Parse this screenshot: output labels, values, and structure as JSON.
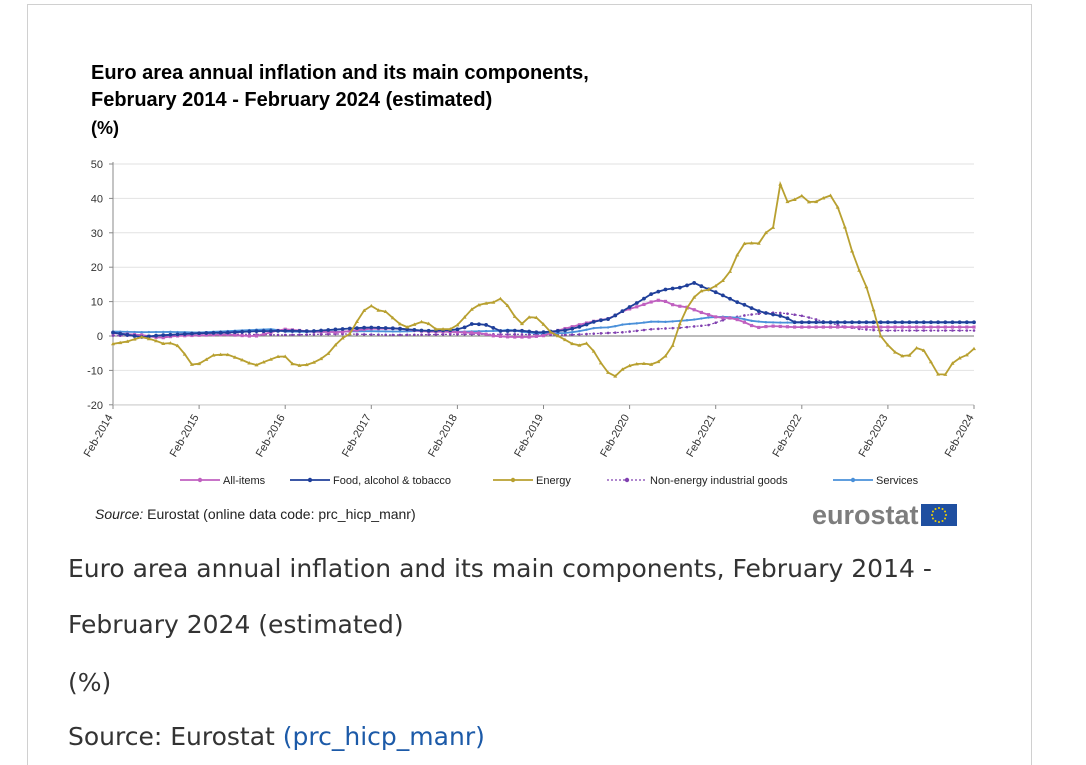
{
  "chart_data": {
    "type": "line",
    "title_line1": "Euro area annual inflation and its main components,",
    "title_line2": "February 2014 - February 2024 (estimated)",
    "unit": "(%)",
    "ylim": [
      -20,
      50
    ],
    "yticks": [
      50,
      40,
      30,
      20,
      10,
      0,
      -10,
      -20
    ],
    "xticks": [
      "Feb-2014",
      "Feb-2015",
      "Feb-2016",
      "Feb-2017",
      "Feb-2018",
      "Feb-2019",
      "Feb-2020",
      "Feb-2021",
      "Feb-2022",
      "Feb-2023",
      "Feb-2024"
    ],
    "grid": true,
    "legend_position": "bottom",
    "x_start": "2014-02",
    "months": 121,
    "series": [
      {
        "name": "All-items",
        "color": "#c060c0",
        "marker": "square",
        "anchors": [
          [
            0,
            0.8
          ],
          [
            6,
            0.3
          ],
          [
            10,
            -0.6
          ],
          [
            13,
            0.0
          ],
          [
            18,
            0.2
          ],
          [
            24,
            0.4
          ],
          [
            30,
            -0.1
          ],
          [
            36,
            2.0
          ],
          [
            42,
            1.3
          ],
          [
            48,
            1.1
          ],
          [
            54,
            2.1
          ],
          [
            60,
            2.2
          ],
          [
            66,
            1.3
          ],
          [
            72,
            1.2
          ],
          [
            78,
            0.8
          ],
          [
            80,
            0.1
          ],
          [
            84,
            -0.3
          ],
          [
            88,
            -0.3
          ],
          [
            91,
            0.1
          ],
          [
            94,
            1.6
          ],
          [
            99,
            3.4
          ],
          [
            102,
            4.4
          ],
          [
            105,
            5.1
          ],
          [
            108,
            7.4
          ],
          [
            111,
            8.6
          ],
          [
            114,
            10.0
          ],
          [
            116,
            10.6
          ],
          [
            118,
            9.2
          ],
          [
            120,
            8.6
          ],
          [
            121,
            8.5
          ],
          [
            122,
            8.1
          ],
          [
            124,
            7.0
          ],
          [
            128,
            5.3
          ],
          [
            131,
            5.2
          ],
          [
            133,
            4.3
          ],
          [
            136,
            2.4
          ],
          [
            139,
            2.9
          ],
          [
            144,
            2.6
          ]
        ]
      },
      {
        "name": "Food, alcohol & tobacco",
        "color": "#1f3f9a",
        "marker": "diamond",
        "anchors": [
          [
            0,
            1.0
          ],
          [
            6,
            -0.3
          ],
          [
            10,
            0.2
          ],
          [
            18,
            0.8
          ],
          [
            24,
            1.0
          ],
          [
            30,
            1.4
          ],
          [
            36,
            1.5
          ],
          [
            42,
            1.4
          ],
          [
            48,
            2.0
          ],
          [
            54,
            2.5
          ],
          [
            60,
            2.2
          ],
          [
            66,
            1.5
          ],
          [
            72,
            1.7
          ],
          [
            74,
            2.3
          ],
          [
            76,
            3.6
          ],
          [
            79,
            3.2
          ],
          [
            82,
            1.4
          ],
          [
            86,
            1.6
          ],
          [
            90,
            1.0
          ],
          [
            96,
            1.7
          ],
          [
            99,
            2.8
          ],
          [
            102,
            4.3
          ],
          [
            105,
            5.0
          ],
          [
            108,
            7.5
          ],
          [
            111,
            9.8
          ],
          [
            114,
            12.4
          ],
          [
            117,
            13.6
          ],
          [
            120,
            14.1
          ],
          [
            122,
            15.0
          ],
          [
            123,
            15.5
          ],
          [
            124,
            14.7
          ],
          [
            126,
            13.5
          ],
          [
            128,
            12.4
          ],
          [
            130,
            11.1
          ],
          [
            132,
            9.8
          ],
          [
            134,
            8.8
          ],
          [
            136,
            7.4
          ],
          [
            138,
            6.7
          ],
          [
            140,
            6.1
          ],
          [
            142,
            5.6
          ],
          [
            144,
            4.0
          ]
        ]
      },
      {
        "name": "Energy",
        "color": "#b8a030",
        "marker": "triangle",
        "anchors": [
          [
            0,
            -2.3
          ],
          [
            3,
            -1.6
          ],
          [
            6,
            -0.3
          ],
          [
            9,
            -1.3
          ],
          [
            10,
            -2.3
          ],
          [
            12,
            -2.0
          ],
          [
            14,
            -3.0
          ],
          [
            17,
            -8.9
          ],
          [
            19,
            -7.5
          ],
          [
            21,
            -5.6
          ],
          [
            24,
            -5.3
          ],
          [
            27,
            -6.8
          ],
          [
            30,
            -8.6
          ],
          [
            32,
            -7.5
          ],
          [
            36,
            -5.4
          ],
          [
            38,
            -8.2
          ],
          [
            40,
            -8.7
          ],
          [
            42,
            -8.0
          ],
          [
            45,
            -5.9
          ],
          [
            48,
            -1.0
          ],
          [
            50,
            0.5
          ],
          [
            52,
            5.2
          ],
          [
            54,
            9.3
          ],
          [
            56,
            7.5
          ],
          [
            58,
            7.0
          ],
          [
            60,
            4.0
          ],
          [
            62,
            2.5
          ],
          [
            64,
            3.5
          ],
          [
            66,
            4.5
          ],
          [
            68,
            2.0
          ],
          [
            72,
            2.0
          ],
          [
            74,
            5.0
          ],
          [
            76,
            8.0
          ],
          [
            78,
            9.5
          ],
          [
            80,
            9.5
          ],
          [
            82,
            10.9
          ],
          [
            84,
            8.0
          ],
          [
            86,
            3.0
          ],
          [
            88,
            5.5
          ],
          [
            90,
            5.3
          ],
          [
            92,
            1.5
          ],
          [
            96,
            -1.4
          ],
          [
            98,
            -3.0
          ],
          [
            100,
            -2.0
          ],
          [
            102,
            -5.0
          ],
          [
            104,
            -10.0
          ],
          [
            106,
            -11.9
          ],
          [
            108,
            -9.3
          ],
          [
            110,
            -8.2
          ],
          [
            112,
            -8.0
          ],
          [
            114,
            -8.3
          ],
          [
            116,
            -7.0
          ],
          [
            118,
            -4.0
          ],
          [
            120,
            4.3
          ],
          [
            122,
            10.0
          ],
          [
            124,
            13.0
          ],
          [
            126,
            13.5
          ],
          [
            128,
            15.0
          ],
          [
            130,
            17.4
          ],
          [
            132,
            23.7
          ],
          [
            134,
            28.0
          ],
          [
            135,
            27.0
          ],
          [
            136,
            25.9
          ],
          [
            138,
            30.0
          ],
          [
            140,
            32.0
          ],
          [
            141,
            44.3
          ],
          [
            142,
            41.0
          ],
          [
            143,
            37.5
          ],
          [
            145,
            41.5
          ],
          [
            147,
            39.0
          ],
          [
            148,
            38.6
          ],
          [
            150,
            40.0
          ],
          [
            152,
            41.0
          ],
          [
            154,
            35.0
          ],
          [
            156,
            25.5
          ],
          [
            158,
            18.1
          ],
          [
            160,
            12.0
          ],
          [
            162,
            0.5
          ],
          [
            164,
            -3.0
          ],
          [
            166,
            -5.6
          ],
          [
            168,
            -6.1
          ],
          [
            170,
            -3.3
          ],
          [
            172,
            -4.6
          ],
          [
            174,
            -11.1
          ],
          [
            176,
            -11.2
          ],
          [
            178,
            -6.7
          ],
          [
            180,
            -6.1
          ],
          [
            182,
            -3.7
          ]
        ]
      },
      {
        "name": "Non-energy industrial goods",
        "color": "#8040b0",
        "marker": "dot",
        "anchors": [
          [
            0,
            0.1
          ],
          [
            12,
            0.0
          ],
          [
            24,
            0.6
          ],
          [
            36,
            0.3
          ],
          [
            48,
            0.6
          ],
          [
            60,
            0.3
          ],
          [
            72,
            0.5
          ],
          [
            84,
            0.5
          ],
          [
            96,
            0.3
          ],
          [
            108,
            1.1
          ],
          [
            114,
            2.0
          ],
          [
            120,
            2.4
          ],
          [
            126,
            3.2
          ],
          [
            130,
            5.1
          ],
          [
            134,
            6.1
          ],
          [
            138,
            6.7
          ],
          [
            140,
            6.8
          ],
          [
            142,
            6.6
          ],
          [
            146,
            5.8
          ],
          [
            150,
            4.3
          ],
          [
            154,
            2.9
          ],
          [
            158,
            2.0
          ],
          [
            162,
            1.6
          ]
        ]
      },
      {
        "name": "Services",
        "color": "#4a90d9",
        "marker": "cross",
        "anchors": [
          [
            0,
            1.3
          ],
          [
            6,
            1.1
          ],
          [
            12,
            1.2
          ],
          [
            18,
            1.0
          ],
          [
            24,
            1.4
          ],
          [
            30,
            1.8
          ],
          [
            34,
            2.0
          ],
          [
            36,
            1.3
          ],
          [
            42,
            1.2
          ],
          [
            48,
            1.3
          ],
          [
            54,
            1.4
          ],
          [
            60,
            1.3
          ],
          [
            66,
            1.5
          ],
          [
            72,
            1.2
          ],
          [
            78,
            1.4
          ],
          [
            82,
            1.5
          ],
          [
            84,
            1.9
          ],
          [
            86,
            1.3
          ],
          [
            90,
            0.7
          ],
          [
            96,
            0.9
          ],
          [
            99,
            1.5
          ],
          [
            102,
            2.4
          ],
          [
            105,
            2.5
          ],
          [
            108,
            3.4
          ],
          [
            111,
            3.7
          ],
          [
            114,
            4.2
          ],
          [
            117,
            4.1
          ],
          [
            120,
            4.4
          ],
          [
            123,
            4.8
          ],
          [
            126,
            5.4
          ],
          [
            129,
            5.6
          ],
          [
            132,
            5.3
          ],
          [
            135,
            4.4
          ],
          [
            138,
            4.0
          ],
          [
            141,
            3.9
          ],
          [
            144,
            3.9
          ]
        ]
      }
    ]
  },
  "source": {
    "label": "Source:",
    "text": "Eurostat (online data code: prc_hicp_manr)"
  },
  "logo": {
    "text": "eurostat"
  },
  "caption": {
    "line1": "Euro area annual inflation and its main components, February 2014 -",
    "line2": "February 2024 (estimated)",
    "unit": "(%)",
    "source_prefix": "Source: Eurostat ",
    "source_link": "(prc_hicp_manr)"
  }
}
